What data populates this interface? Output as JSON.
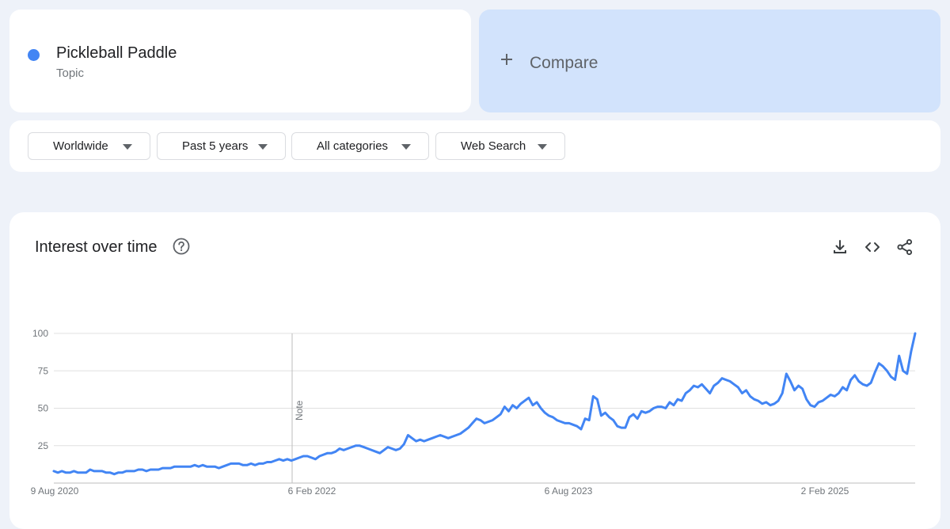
{
  "term": {
    "name": "Pickleball Paddle",
    "type": "Topic",
    "color": "#4285f4"
  },
  "compare": {
    "label": "Compare",
    "icon": "plus-icon"
  },
  "filters": [
    {
      "label": "Worldwide"
    },
    {
      "label": "Past 5 years"
    },
    {
      "label": "All categories"
    },
    {
      "label": "Web Search"
    }
  ],
  "panel": {
    "title": "Interest over time",
    "icons": [
      "help-icon",
      "download-icon",
      "embed-icon",
      "share-icon"
    ]
  },
  "chart_data": {
    "type": "line",
    "series": [
      {
        "values": [
          8,
          7,
          8,
          7,
          7,
          8,
          7,
          7,
          7,
          9,
          8,
          8,
          8,
          7,
          7,
          6,
          7,
          7,
          8,
          8,
          8,
          9,
          9,
          8,
          9,
          9,
          9,
          10,
          10,
          10,
          11,
          11,
          11,
          11,
          11,
          12,
          11,
          12,
          11,
          11,
          11,
          10,
          11,
          12,
          13,
          13,
          13,
          12,
          12,
          13,
          12,
          13,
          13,
          14,
          14,
          15,
          16,
          15,
          16,
          15,
          16,
          17,
          18,
          18,
          17,
          16,
          18,
          19,
          20,
          20,
          21,
          23,
          22,
          23,
          24,
          25,
          25,
          24,
          23,
          22,
          21,
          20,
          22,
          24,
          23,
          22,
          23,
          26,
          32,
          30,
          28,
          29,
          28,
          29,
          30,
          31,
          32,
          31,
          30,
          31,
          32,
          33,
          35,
          37,
          40,
          43,
          42,
          40,
          41,
          42,
          44,
          46,
          51,
          48,
          52,
          50,
          53,
          55,
          57,
          52,
          54,
          50,
          47,
          45,
          44,
          42,
          41,
          40,
          40,
          39,
          38,
          36,
          43,
          42,
          58,
          56,
          45,
          47,
          44,
          42,
          38,
          37,
          37,
          44,
          46,
          43,
          48,
          47,
          48,
          50,
          51,
          51,
          50,
          54,
          52,
          56,
          55,
          60,
          62,
          65,
          64,
          66,
          63,
          60,
          65,
          67,
          70,
          69,
          68,
          66,
          64,
          60,
          62,
          58,
          56,
          55,
          53,
          54,
          52,
          53,
          55,
          60,
          73,
          68,
          62,
          65,
          63,
          56,
          52,
          51,
          54,
          55,
          57,
          59,
          58,
          60,
          64,
          62,
          69,
          72,
          68,
          66,
          65,
          67,
          74,
          80,
          78,
          75,
          71,
          69,
          85,
          75,
          73,
          88,
          100
        ]
      }
    ],
    "y_ticks": [
      "100",
      "75",
      "50",
      "25"
    ],
    "ylim": [
      0,
      100
    ],
    "x_labels": [
      "9 Aug 2020",
      "6 Feb 2022",
      "6 Aug 2023",
      "2 Feb 2025"
    ],
    "annotation": "Note",
    "line_color": "#4285f4",
    "grid": true
  }
}
